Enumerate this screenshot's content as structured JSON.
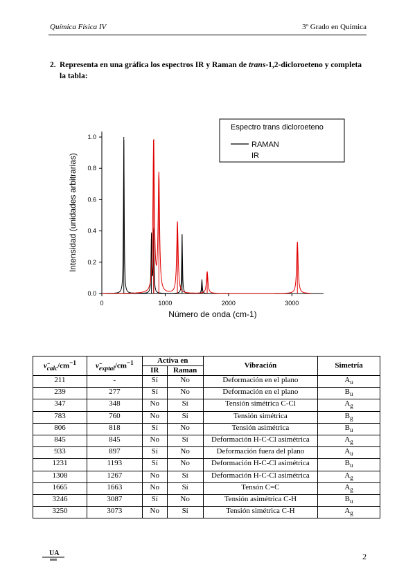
{
  "header": {
    "left": "Química Física IV",
    "right": "3º Grado en Química"
  },
  "question": {
    "number": "2.",
    "text_before": "Representa en una gráfica los espectros IR y Raman de ",
    "text_italic": "trans",
    "text_after": "-1,2-dicloroeteno y completa la tabla:"
  },
  "chart_data": {
    "type": "line",
    "xlabel": "Número de onda (cm-1)",
    "ylabel": "Intensidad (unidades arbitrarias)",
    "xlim": [
      0,
      3500
    ],
    "ylim": [
      0,
      1.0
    ],
    "x_ticks": [
      "0",
      "1000",
      "2000",
      "3000"
    ],
    "y_ticks": [
      "0.0",
      "0.2",
      "0.4",
      "0.6",
      "0.8",
      "1.0"
    ],
    "legend": {
      "title": "Espectro trans dicloroeteno",
      "placement": "top-right",
      "entries": [
        "RAMAN",
        "IR"
      ]
    },
    "series": [
      {
        "name": "RAMAN",
        "color": "#000000",
        "peaks": [
          {
            "x": 347,
            "y": 1.0
          },
          {
            "x": 783,
            "y": 0.38
          },
          {
            "x": 818,
            "y": 0.42
          },
          {
            "x": 1267,
            "y": 0.38
          },
          {
            "x": 1580,
            "y": 0.09
          }
        ]
      },
      {
        "name": "IR",
        "color": "#e00000",
        "peaks": [
          {
            "x": 818,
            "y": 0.98
          },
          {
            "x": 900,
            "y": 0.75
          },
          {
            "x": 1193,
            "y": 0.46
          },
          {
            "x": 1663,
            "y": 0.14
          },
          {
            "x": 3087,
            "y": 0.33
          }
        ]
      }
    ]
  },
  "table": {
    "col1_main": "ν̃",
    "col1_sub": "calc",
    "col1_unit": "/cm",
    "col1_sup": "−1",
    "col2_main": "ν̃",
    "col2_sub": "exptal",
    "col2_unit": "/cm",
    "col2_sup": "−1",
    "activa": "Activa en",
    "ir": "IR",
    "raman": "Raman",
    "vibracion": "Vibración",
    "simetria": "Simetría",
    "rows": [
      {
        "calc": "211",
        "exp": "-",
        "ir": "Sí",
        "raman": "No",
        "vib": "Deformación en el plano",
        "sym": "A",
        "sub": "u"
      },
      {
        "calc": "239",
        "exp": "277",
        "ir": "Sí",
        "raman": "No",
        "vib": "Deformación en el plano",
        "sym": "B",
        "sub": "u"
      },
      {
        "calc": "347",
        "exp": "348",
        "ir": "No",
        "raman": "Sí",
        "vib": "Tensión simétrica C-Cl",
        "sym": "A",
        "sub": "g"
      },
      {
        "calc": "783",
        "exp": "760",
        "ir": "No",
        "raman": "Sí",
        "vib": "Tensión simétrica",
        "sym": "B",
        "sub": "g"
      },
      {
        "calc": "806",
        "exp": "818",
        "ir": "Sí",
        "raman": "No",
        "vib": "Tensión asimétrica",
        "sym": "B",
        "sub": "u"
      },
      {
        "calc": "845",
        "exp": "845",
        "ir": "No",
        "raman": "Sí",
        "vib": "Deformación H-C-Cl asimétrica",
        "sym": "A",
        "sub": "g"
      },
      {
        "calc": "933",
        "exp": "897",
        "ir": "Sí",
        "raman": "No",
        "vib": "Deformación fuera del plano",
        "sym": "A",
        "sub": "u"
      },
      {
        "calc": "1231",
        "exp": "1193",
        "ir": "Sí",
        "raman": "No",
        "vib": "Deformación H-C-Cl asimétrica",
        "sym": "B",
        "sub": "u"
      },
      {
        "calc": "1308",
        "exp": "1267",
        "ir": "No",
        "raman": "Sí",
        "vib": "Deformación H-C-Cl asimétrica",
        "sym": "A",
        "sub": "g"
      },
      {
        "calc": "1665",
        "exp": "1663",
        "ir": "No",
        "raman": "Sí",
        "vib": "Tensón C=C",
        "sym": "A",
        "sub": "g"
      },
      {
        "calc": "3246",
        "exp": "3087",
        "ir": "Sí",
        "raman": "No",
        "vib": "Tensión asimétrica C-H",
        "sym": "B",
        "sub": "u"
      },
      {
        "calc": "3250",
        "exp": "3073",
        "ir": "No",
        "raman": "Sí",
        "vib": "Tensión simétrica C-H",
        "sym": "A",
        "sub": "g"
      }
    ]
  },
  "footer": {
    "page_number": "2",
    "logo_icon": "university-logo-icon"
  }
}
